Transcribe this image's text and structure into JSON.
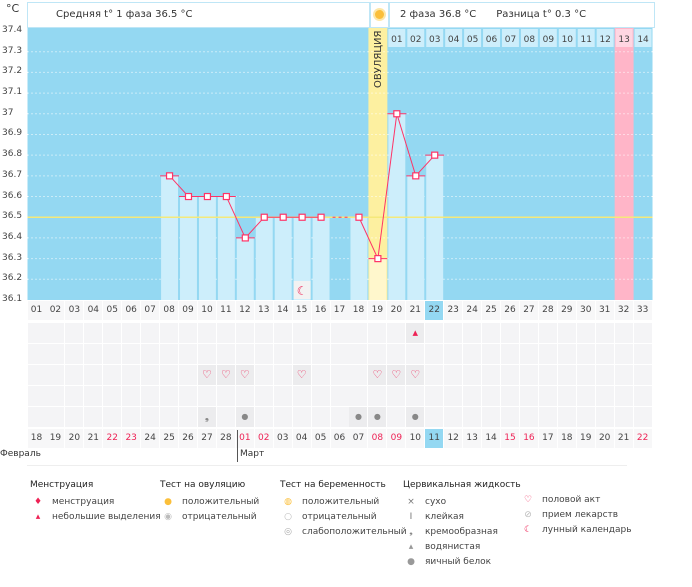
{
  "unit": "°C",
  "header": {
    "phase1": "Средняя t° 1 фаза 36.5 °C",
    "phase2": "2 фаза 36.8 °C",
    "diff": "Разница t° 0.3 °C",
    "ovulation_label": "ОВУЛЯЦИЯ"
  },
  "colors": {
    "plot_bg": "#94d8f2",
    "bar": "#cdeefb",
    "line": "#ff3366",
    "ovulation": "#fdf0a0",
    "pink": "#ffb5c8",
    "highlight": "#94d8f2",
    "average": "#f5e97a",
    "weekend": "#ee2255"
  },
  "chart_data": {
    "type": "line",
    "ylabel": "°C",
    "ylim": [
      36.1,
      37.4
    ],
    "yticks": [
      "37.4",
      "37.3",
      "37.2",
      "37.1",
      "37",
      "36.9",
      "36.8",
      "36.7",
      "36.6",
      "36.5",
      "36.4",
      "36.3",
      "36.2",
      "36.1"
    ],
    "cycle_days": [
      "01",
      "02",
      "03",
      "04",
      "05",
      "06",
      "07",
      "08",
      "09",
      "10",
      "11",
      "12",
      "13",
      "14",
      "15",
      "16",
      "17",
      "18",
      "19",
      "20",
      "21",
      "22",
      "23",
      "24",
      "25",
      "26",
      "27",
      "28",
      "29",
      "30",
      "31",
      "32",
      "33"
    ],
    "temperatures": [
      null,
      null,
      null,
      null,
      null,
      null,
      null,
      36.7,
      36.6,
      36.6,
      36.6,
      36.4,
      36.5,
      36.5,
      36.5,
      36.5,
      null,
      36.5,
      36.3,
      37.0,
      36.7,
      36.8,
      null,
      null,
      null,
      null,
      null,
      null,
      null,
      null,
      null,
      null,
      null
    ],
    "average_line": 36.5,
    "ovulation_day": 19,
    "current_day": 22,
    "pink_day": 32,
    "phase2_days": [
      "01",
      "02",
      "03",
      "04",
      "05",
      "06",
      "07",
      "08",
      "09",
      "10",
      "11",
      "12",
      "13",
      "14"
    ],
    "dates": [
      "18",
      "19",
      "20",
      "21",
      "22",
      "23",
      "24",
      "25",
      "26",
      "27",
      "28",
      "01",
      "02",
      "03",
      "04",
      "05",
      "06",
      "07",
      "08",
      "09",
      "10",
      "11",
      "12",
      "13",
      "14",
      "15",
      "16",
      "17",
      "18",
      "19",
      "20",
      "21",
      "22"
    ],
    "weekend_dates_idx": [
      4,
      5,
      11,
      12,
      18,
      19,
      25,
      26,
      32
    ],
    "months": [
      "Февраль",
      "Март"
    ],
    "markers": {
      "spotting": [
        21
      ],
      "intercourse": [
        10,
        11,
        12,
        15,
        19,
        20,
        21
      ],
      "creamy": [
        10
      ],
      "watery": [
        12,
        18,
        19,
        21
      ],
      "moon": [
        15
      ]
    }
  },
  "legend": [
    {
      "title": "Менструация",
      "items": [
        {
          "icon": "menstruation-icon",
          "label": "менструация"
        },
        {
          "icon": "spotting-icon",
          "label": "небольшие выделения"
        }
      ]
    },
    {
      "title": "Тест на овуляцию",
      "items": [
        {
          "icon": "positive-test-icon",
          "label": "положительный"
        },
        {
          "icon": "negative-test-icon",
          "label": "отрицательный"
        }
      ]
    },
    {
      "title": "Тест на беременность",
      "items": [
        {
          "icon": "positive-pregnancy-icon",
          "label": "положительный"
        },
        {
          "icon": "negative-pregnancy-icon",
          "label": "отрицательный"
        },
        {
          "icon": "weak-pregnancy-icon",
          "label": "слабоположительный"
        }
      ]
    },
    {
      "title": "Цервикальная жидкость",
      "items": [
        {
          "icon": "dry-icon",
          "label": "сухо"
        },
        {
          "icon": "sticky-icon",
          "label": "клейкая"
        },
        {
          "icon": "creamy-icon",
          "label": "кремообразная"
        },
        {
          "icon": "watery-icon",
          "label": "водянистая"
        },
        {
          "icon": "egg-white-icon",
          "label": "яичный белок"
        }
      ]
    },
    {
      "title": "",
      "items": [
        {
          "icon": "heart-icon",
          "label": "половой акт"
        },
        {
          "icon": "pill-icon",
          "label": "прием лекарств"
        },
        {
          "icon": "moon-icon",
          "label": "лунный календарь"
        }
      ]
    }
  ]
}
